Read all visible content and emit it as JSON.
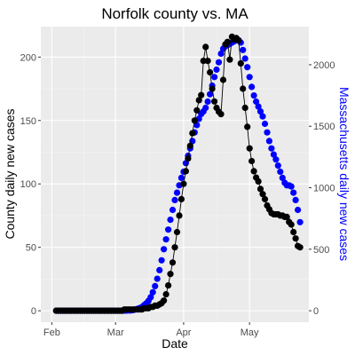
{
  "chart_data": {
    "type": "scatter",
    "title": "Norfolk county vs. MA",
    "xlabel": "Date",
    "ylabel": "County daily new cases",
    "y2label": "Massachusetts daily new cases",
    "x_ticks": [
      "Feb",
      "Mar",
      "Apr",
      "May"
    ],
    "x_tick_dates": [
      "2020-02-01",
      "2020-03-01",
      "2020-04-01",
      "2020-05-01"
    ],
    "xlim": [
      "2020-01-27",
      "2020-05-28"
    ],
    "y_ticks": [
      0,
      50,
      100,
      150,
      200
    ],
    "ylim": [
      -9,
      224
    ],
    "y2_ticks": [
      0,
      500,
      1000,
      1500,
      2000
    ],
    "y2lim": [
      -93,
      2310
    ],
    "grid": true,
    "series": [
      {
        "axis": "left",
        "color": "#000000",
        "line": true,
        "x": [
          "2020-02-03",
          "2020-02-04",
          "2020-02-05",
          "2020-02-06",
          "2020-02-07",
          "2020-02-08",
          "2020-02-09",
          "2020-02-10",
          "2020-02-11",
          "2020-02-12",
          "2020-02-13",
          "2020-02-14",
          "2020-02-15",
          "2020-02-16",
          "2020-02-17",
          "2020-02-18",
          "2020-02-19",
          "2020-02-20",
          "2020-02-21",
          "2020-02-22",
          "2020-02-23",
          "2020-02-24",
          "2020-02-25",
          "2020-02-26",
          "2020-02-27",
          "2020-02-28",
          "2020-02-29",
          "2020-03-01",
          "2020-03-02",
          "2020-03-03",
          "2020-03-04",
          "2020-03-05",
          "2020-03-06",
          "2020-03-07",
          "2020-03-08",
          "2020-03-09",
          "2020-03-10",
          "2020-03-11",
          "2020-03-12",
          "2020-03-13",
          "2020-03-14",
          "2020-03-15",
          "2020-03-16",
          "2020-03-17",
          "2020-03-18",
          "2020-03-19",
          "2020-03-20",
          "2020-03-21",
          "2020-03-22",
          "2020-03-23",
          "2020-03-24",
          "2020-03-25",
          "2020-03-26",
          "2020-03-27",
          "2020-03-28",
          "2020-03-29",
          "2020-03-30",
          "2020-03-31",
          "2020-04-01",
          "2020-04-02",
          "2020-04-03",
          "2020-04-04",
          "2020-04-05",
          "2020-04-06",
          "2020-04-07",
          "2020-04-08",
          "2020-04-09",
          "2020-04-10",
          "2020-04-11",
          "2020-04-12",
          "2020-04-13",
          "2020-04-14",
          "2020-04-15",
          "2020-04-16",
          "2020-04-17",
          "2020-04-18",
          "2020-04-19",
          "2020-04-20",
          "2020-04-21",
          "2020-04-22",
          "2020-04-23",
          "2020-04-24",
          "2020-04-25",
          "2020-04-26",
          "2020-04-27",
          "2020-04-28",
          "2020-04-29",
          "2020-04-30",
          "2020-05-01",
          "2020-05-02",
          "2020-05-03",
          "2020-05-04",
          "2020-05-05",
          "2020-05-06",
          "2020-05-07",
          "2020-05-08",
          "2020-05-09",
          "2020-05-10",
          "2020-05-11",
          "2020-05-12",
          "2020-05-13",
          "2020-05-14",
          "2020-05-15",
          "2020-05-16",
          "2020-05-17",
          "2020-05-18",
          "2020-05-19",
          "2020-05-20",
          "2020-05-21",
          "2020-05-22",
          "2020-05-23",
          "2020-05-24"
        ],
        "y": [
          0,
          0,
          0,
          0,
          0,
          0,
          0,
          0,
          0,
          0,
          0,
          0,
          0,
          0,
          0,
          0,
          0,
          0,
          0,
          0,
          0,
          0,
          0,
          0,
          0,
          0,
          0,
          0,
          0,
          0,
          0,
          1,
          1,
          1,
          1,
          1,
          1,
          1,
          1,
          1,
          2,
          2,
          2,
          3,
          3,
          4,
          4,
          5,
          6,
          8,
          13,
          20,
          29,
          38,
          50,
          62,
          75,
          88,
          100,
          110,
          120,
          130,
          140,
          150,
          158,
          166,
          170,
          197,
          208,
          197,
          188,
          175,
          165,
          160,
          157,
          155,
          182,
          210,
          212,
          198,
          216,
          214,
          215,
          213,
          195,
          175,
          160,
          145,
          128,
          118,
          110,
          105,
          102,
          96,
          92,
          88,
          83,
          80,
          77,
          76,
          76,
          76,
          75,
          75,
          74,
          74,
          70,
          68,
          62,
          57,
          51,
          50
        ]
      },
      {
        "axis": "right",
        "color": "#0000ff",
        "line": false,
        "x": [
          "2020-02-03",
          "2020-02-04",
          "2020-02-05",
          "2020-02-06",
          "2020-02-07",
          "2020-02-08",
          "2020-02-09",
          "2020-02-10",
          "2020-02-11",
          "2020-02-12",
          "2020-02-13",
          "2020-02-14",
          "2020-02-15",
          "2020-02-16",
          "2020-02-17",
          "2020-02-18",
          "2020-02-19",
          "2020-02-20",
          "2020-02-21",
          "2020-02-22",
          "2020-02-23",
          "2020-02-24",
          "2020-02-25",
          "2020-02-26",
          "2020-02-27",
          "2020-02-28",
          "2020-02-29",
          "2020-03-01",
          "2020-03-02",
          "2020-03-03",
          "2020-03-04",
          "2020-03-05",
          "2020-03-06",
          "2020-03-07",
          "2020-03-08",
          "2020-03-09",
          "2020-03-10",
          "2020-03-11",
          "2020-03-12",
          "2020-03-13",
          "2020-03-14",
          "2020-03-15",
          "2020-03-16",
          "2020-03-17",
          "2020-03-18",
          "2020-03-19",
          "2020-03-20",
          "2020-03-21",
          "2020-03-22",
          "2020-03-23",
          "2020-03-24",
          "2020-03-25",
          "2020-03-26",
          "2020-03-27",
          "2020-03-28",
          "2020-03-29",
          "2020-03-30",
          "2020-03-31",
          "2020-04-01",
          "2020-04-02",
          "2020-04-03",
          "2020-04-04",
          "2020-04-05",
          "2020-04-06",
          "2020-04-07",
          "2020-04-08",
          "2020-04-09",
          "2020-04-10",
          "2020-04-11",
          "2020-04-12",
          "2020-04-13",
          "2020-04-14",
          "2020-04-15",
          "2020-04-16",
          "2020-04-17",
          "2020-04-18",
          "2020-04-19",
          "2020-04-20",
          "2020-04-21",
          "2020-04-22",
          "2020-04-23",
          "2020-04-24",
          "2020-04-25",
          "2020-04-26",
          "2020-04-27",
          "2020-04-28",
          "2020-04-29",
          "2020-04-30",
          "2020-05-01",
          "2020-05-02",
          "2020-05-03",
          "2020-05-04",
          "2020-05-05",
          "2020-05-06",
          "2020-05-07",
          "2020-05-08",
          "2020-05-09",
          "2020-05-10",
          "2020-05-11",
          "2020-05-12",
          "2020-05-13",
          "2020-05-14",
          "2020-05-15",
          "2020-05-16",
          "2020-05-17",
          "2020-05-18",
          "2020-05-19",
          "2020-05-20",
          "2020-05-21",
          "2020-05-22",
          "2020-05-23",
          "2020-05-24"
        ],
        "y": [
          0,
          0,
          0,
          0,
          0,
          0,
          0,
          0,
          0,
          0,
          0,
          0,
          0,
          0,
          0,
          0,
          0,
          0,
          0,
          0,
          0,
          0,
          0,
          0,
          0,
          0,
          0,
          0,
          0,
          0,
          0,
          1,
          1,
          2,
          2,
          5,
          10,
          15,
          22,
          30,
          45,
          60,
          80,
          110,
          150,
          200,
          260,
          330,
          410,
          500,
          580,
          660,
          740,
          820,
          900,
          960,
          1020,
          1080,
          1130,
          1200,
          1260,
          1320,
          1380,
          1450,
          1510,
          1560,
          1600,
          1620,
          1650,
          1700,
          1760,
          1830,
          1900,
          1960,
          2020,
          2090,
          2130,
          2150,
          2160,
          2170,
          2180,
          2190,
          2200,
          2200,
          2180,
          2120,
          2050,
          1980,
          1900,
          1820,
          1750,
          1700,
          1660,
          1620,
          1580,
          1520,
          1450,
          1380,
          1320,
          1270,
          1230,
          1180,
          1130,
          1080,
          1040,
          1020,
          1020,
          1010,
          960,
          900,
          820,
          720
        ]
      }
    ]
  }
}
